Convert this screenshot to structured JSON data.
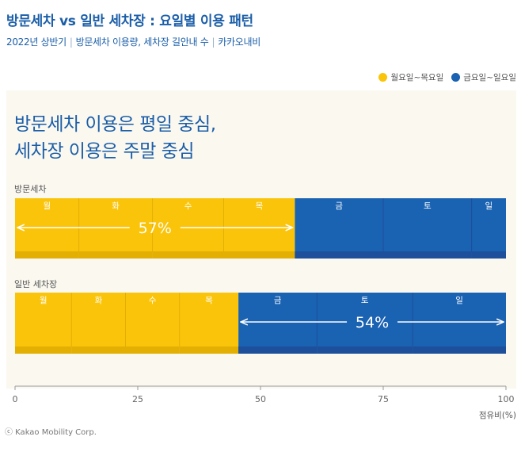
{
  "header": {
    "title": "방문세차 vs 일반 세차장 : 요일별 이용 패턴",
    "subtitle_parts": [
      "2022년 상반기",
      "방문세차 이용량, 세차장 길안내 수",
      "카카오내비"
    ],
    "separator": "|"
  },
  "headline": {
    "line1": "방문세차 이용은 평일 중심,",
    "line2": "세차장 이용은 주말 중심"
  },
  "colors": {
    "weekday": "#fac40a",
    "weekend": "#1a62b2",
    "weekday_dark": "#e3af03",
    "weekend_dark": "#1d4f9b",
    "divider": "#c9c4b8",
    "panel": "#fbf8f0",
    "accent": "#1b5ea8"
  },
  "footer": {
    "credit": "ⓒ Kakao Mobility Corp."
  },
  "chart_data": {
    "type": "bar",
    "orientation": "horizontal",
    "stacked": true,
    "legend": [
      {
        "name": "월요일~목요일",
        "color_key": "weekday"
      },
      {
        "name": "금요일~일요일",
        "color_key": "weekend"
      }
    ],
    "legend_position": "top-right",
    "xlabel": "점유비(%)",
    "xlim": [
      0,
      100
    ],
    "xticks": [
      0,
      25,
      50,
      75,
      100
    ],
    "groups": [
      {
        "label": "방문세차",
        "segments": [
          {
            "day": "월",
            "value": 13.0
          },
          {
            "day": "화",
            "value": 15.0
          },
          {
            "day": "수",
            "value": 14.5
          },
          {
            "day": "목",
            "value": 14.5
          },
          {
            "day": "금",
            "value": 18.0
          },
          {
            "day": "토",
            "value": 18.0
          },
          {
            "day": "일",
            "value": 7.0
          }
        ],
        "weekday_total_label": "57%",
        "highlight": "weekday"
      },
      {
        "label": "일반 세차장",
        "segments": [
          {
            "day": "월",
            "value": 11.5
          },
          {
            "day": "화",
            "value": 11.0
          },
          {
            "day": "수",
            "value": 11.0
          },
          {
            "day": "목",
            "value": 12.0
          },
          {
            "day": "금",
            "value": 16.0
          },
          {
            "day": "토",
            "value": 19.5
          },
          {
            "day": "일",
            "value": 19.0
          }
        ],
        "weekend_total_label": "54%",
        "highlight": "weekend"
      }
    ]
  }
}
